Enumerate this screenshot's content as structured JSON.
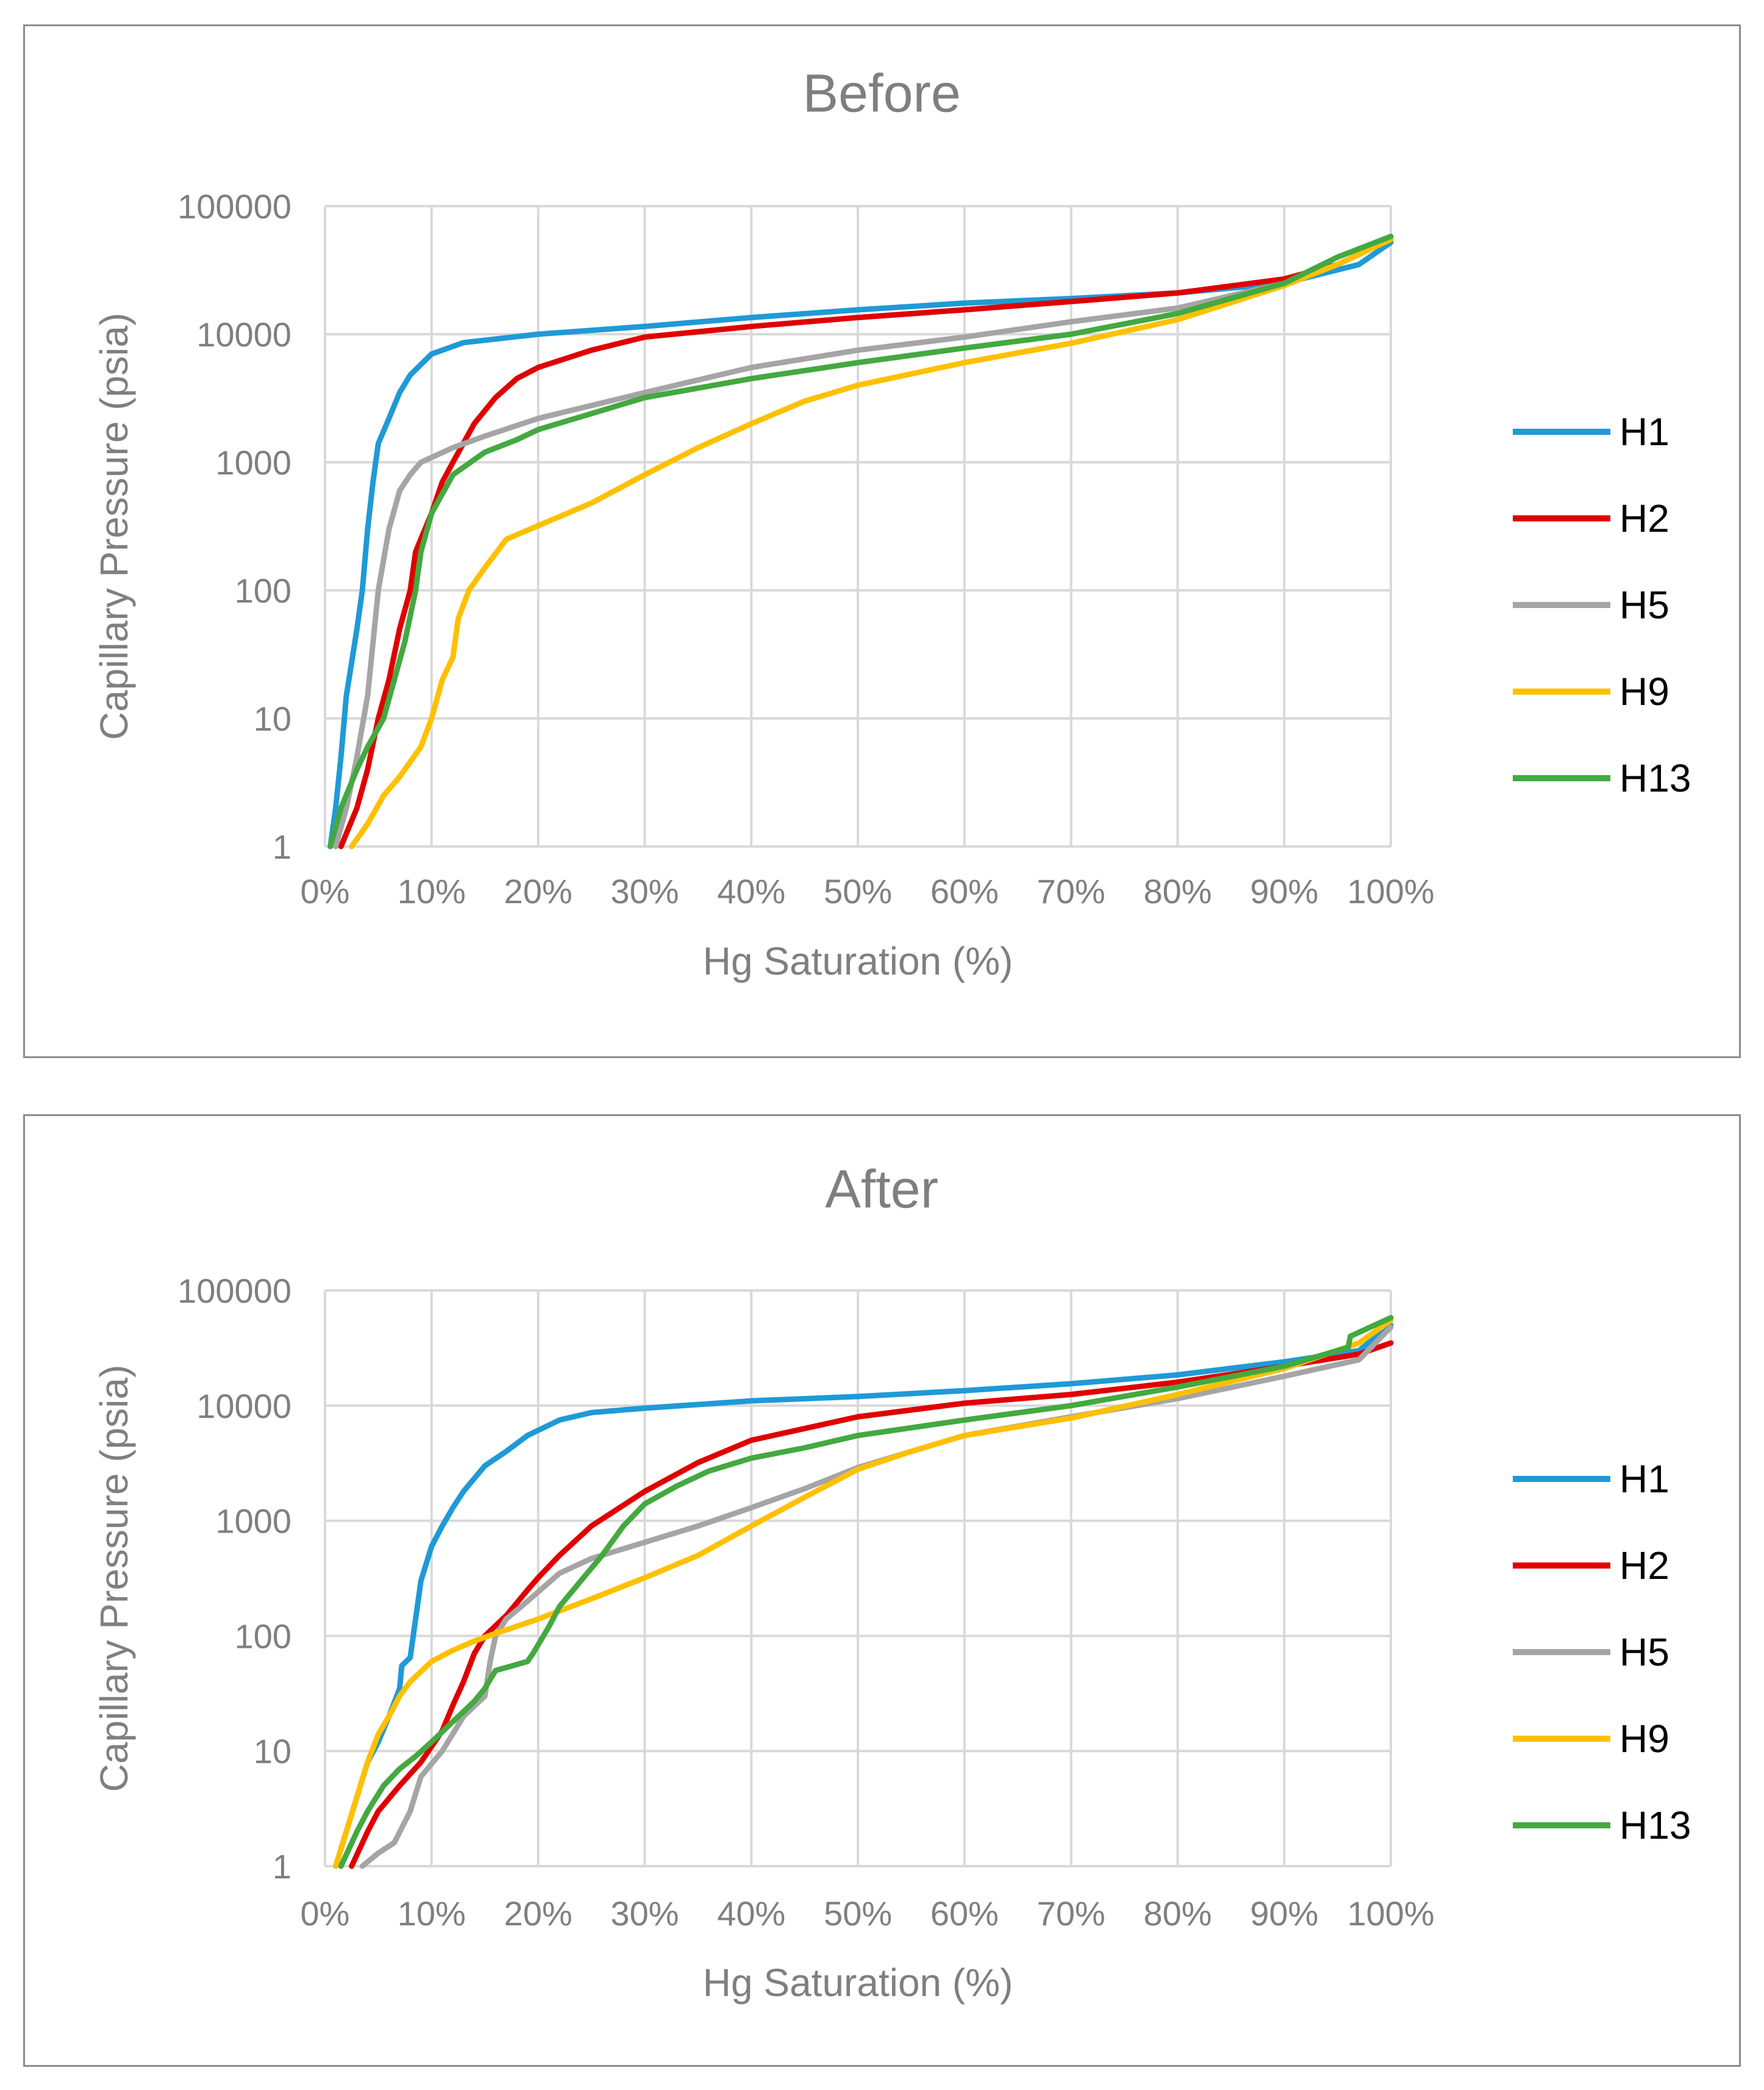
{
  "chart_data": [
    {
      "type": "line",
      "title": "Before",
      "xlabel": "Hg Saturation (%)",
      "ylabel": "Capillary Pressure (psia)",
      "yscale": "log",
      "xlim": [
        0,
        100
      ],
      "ylim": [
        1,
        100000
      ],
      "x_ticks": [
        "0%",
        "10%",
        "20%",
        "30%",
        "40%",
        "50%",
        "60%",
        "70%",
        "80%",
        "90%",
        "100%"
      ],
      "y_ticks": [
        "1",
        "10",
        "100",
        "1000",
        "10000",
        "100000"
      ],
      "grid": true,
      "legend_position": "right",
      "series": [
        {
          "name": "H1",
          "color": "#1f9ad6",
          "points": [
            [
              0.5,
              1
            ],
            [
              1,
              2
            ],
            [
              1.5,
              5
            ],
            [
              2,
              15
            ],
            [
              3,
              50
            ],
            [
              3.5,
              100
            ],
            [
              4,
              300
            ],
            [
              4.5,
              700
            ],
            [
              5,
              1400
            ],
            [
              6,
              2200
            ],
            [
              7,
              3500
            ],
            [
              8,
              4800
            ],
            [
              10,
              7000
            ],
            [
              13,
              8600
            ],
            [
              20,
              10000
            ],
            [
              30,
              11500
            ],
            [
              40,
              13500
            ],
            [
              50,
              15500
            ],
            [
              60,
              17500
            ],
            [
              70,
              19000
            ],
            [
              80,
              21000
            ],
            [
              90,
              25000
            ],
            [
              97,
              35000
            ],
            [
              100,
              52000
            ]
          ]
        },
        {
          "name": "H2",
          "color": "#e00000",
          "points": [
            [
              1.5,
              1
            ],
            [
              3,
              2
            ],
            [
              4,
              4
            ],
            [
              5,
              10
            ],
            [
              6,
              20
            ],
            [
              7,
              50
            ],
            [
              8,
              100
            ],
            [
              8.5,
              200
            ],
            [
              10,
              400
            ],
            [
              11,
              700
            ],
            [
              12,
              1000
            ],
            [
              14,
              2000
            ],
            [
              16,
              3200
            ],
            [
              18,
              4500
            ],
            [
              20,
              5500
            ],
            [
              25,
              7500
            ],
            [
              30,
              9500
            ],
            [
              40,
              11500
            ],
            [
              50,
              13500
            ],
            [
              60,
              15500
            ],
            [
              70,
              18000
            ],
            [
              80,
              21000
            ],
            [
              90,
              27000
            ],
            [
              95,
              35000
            ],
            [
              100,
              55000
            ]
          ]
        },
        {
          "name": "H5",
          "color": "#a5a5a5",
          "points": [
            [
              1,
              1
            ],
            [
              2,
              2
            ],
            [
              3,
              5
            ],
            [
              4,
              15
            ],
            [
              5,
              100
            ],
            [
              6,
              300
            ],
            [
              7,
              600
            ],
            [
              8,
              800
            ],
            [
              9,
              1000
            ],
            [
              12,
              1300
            ],
            [
              15,
              1600
            ],
            [
              20,
              2200
            ],
            [
              30,
              3500
            ],
            [
              40,
              5500
            ],
            [
              50,
              7500
            ],
            [
              60,
              9500
            ],
            [
              70,
              12500
            ],
            [
              80,
              16000
            ],
            [
              90,
              25000
            ],
            [
              95,
              35000
            ],
            [
              100,
              55000
            ]
          ]
        },
        {
          "name": "H9",
          "color": "#ffc000",
          "points": [
            [
              2.5,
              1
            ],
            [
              4,
              1.5
            ],
            [
              5.5,
              2.5
            ],
            [
              7,
              3.5
            ],
            [
              9,
              6
            ],
            [
              10,
              10
            ],
            [
              11,
              20
            ],
            [
              12,
              30
            ],
            [
              12.5,
              60
            ],
            [
              13.5,
              100
            ],
            [
              15,
              150
            ],
            [
              17,
              250
            ],
            [
              20,
              320
            ],
            [
              25,
              480
            ],
            [
              30,
              800
            ],
            [
              35,
              1300
            ],
            [
              40,
              2000
            ],
            [
              45,
              3000
            ],
            [
              50,
              4000
            ],
            [
              60,
              6000
            ],
            [
              70,
              8500
            ],
            [
              80,
              13000
            ],
            [
              90,
              24000
            ],
            [
              95,
              35000
            ],
            [
              100,
              55000
            ]
          ]
        },
        {
          "name": "H13",
          "color": "#43a940",
          "points": [
            [
              0.5,
              1
            ],
            [
              1.5,
              2
            ],
            [
              3,
              4
            ],
            [
              4,
              6
            ],
            [
              5.5,
              10
            ],
            [
              6.5,
              20
            ],
            [
              7.5,
              40
            ],
            [
              8.5,
              100
            ],
            [
              9,
              200
            ],
            [
              10,
              400
            ],
            [
              12,
              800
            ],
            [
              15,
              1200
            ],
            [
              18,
              1500
            ],
            [
              20,
              1800
            ],
            [
              25,
              2400
            ],
            [
              30,
              3200
            ],
            [
              40,
              4500
            ],
            [
              50,
              6000
            ],
            [
              60,
              7800
            ],
            [
              70,
              10000
            ],
            [
              80,
              14500
            ],
            [
              90,
              25000
            ],
            [
              95,
              40000
            ],
            [
              100,
              58000
            ]
          ]
        }
      ],
      "legend": [
        "H1",
        "H2",
        "H5",
        "H9",
        "H13"
      ]
    },
    {
      "type": "line",
      "title": "After",
      "xlabel": "Hg Saturation (%)",
      "ylabel": "Capillary Pressure (psia)",
      "yscale": "log",
      "xlim": [
        0,
        100
      ],
      "ylim": [
        1,
        100000
      ],
      "x_ticks": [
        "0%",
        "10%",
        "20%",
        "30%",
        "40%",
        "50%",
        "60%",
        "70%",
        "80%",
        "90%",
        "100%"
      ],
      "y_ticks": [
        "1",
        "10",
        "100",
        "1000",
        "10000",
        "100000"
      ],
      "grid": true,
      "legend_position": "right",
      "series": [
        {
          "name": "H1",
          "color": "#1f9ad6",
          "points": [
            [
              1,
              1
            ],
            [
              2,
              2
            ],
            [
              3,
              4
            ],
            [
              4,
              8
            ],
            [
              5,
              12
            ],
            [
              6,
              20
            ],
            [
              7,
              35
            ],
            [
              7.2,
              55
            ],
            [
              8,
              65
            ],
            [
              9,
              300
            ],
            [
              10,
              600
            ],
            [
              11,
              900
            ],
            [
              12,
              1300
            ],
            [
              13,
              1800
            ],
            [
              15,
              3000
            ],
            [
              17,
              4000
            ],
            [
              19,
              5500
            ],
            [
              22,
              7500
            ],
            [
              25,
              8700
            ],
            [
              30,
              9500
            ],
            [
              40,
              11000
            ],
            [
              50,
              12000
            ],
            [
              60,
              13500
            ],
            [
              70,
              15500
            ],
            [
              80,
              18500
            ],
            [
              90,
              24000
            ],
            [
              97,
              30000
            ],
            [
              100,
              50000
            ]
          ]
        },
        {
          "name": "H2",
          "color": "#e00000",
          "points": [
            [
              2.5,
              1
            ],
            [
              4,
              2
            ],
            [
              5,
              3
            ],
            [
              7,
              5
            ],
            [
              9,
              8
            ],
            [
              11,
              15
            ],
            [
              12,
              25
            ],
            [
              13,
              40
            ],
            [
              14,
              70
            ],
            [
              15,
              100
            ],
            [
              17,
              150
            ],
            [
              19,
              250
            ],
            [
              20,
              320
            ],
            [
              22,
              500
            ],
            [
              25,
              900
            ],
            [
              30,
              1800
            ],
            [
              35,
              3200
            ],
            [
              40,
              5000
            ],
            [
              50,
              8000
            ],
            [
              60,
              10500
            ],
            [
              70,
              12500
            ],
            [
              80,
              16000
            ],
            [
              90,
              22000
            ],
            [
              97,
              28000
            ],
            [
              100,
              35000
            ]
          ]
        },
        {
          "name": "H5",
          "color": "#a5a5a5",
          "points": [
            [
              3.5,
              1
            ],
            [
              5,
              1.3
            ],
            [
              6.5,
              1.6
            ],
            [
              8,
              3
            ],
            [
              9,
              6
            ],
            [
              11,
              10
            ],
            [
              13,
              20
            ],
            [
              15,
              30
            ],
            [
              15.5,
              60
            ],
            [
              16,
              100
            ],
            [
              17,
              140
            ],
            [
              19,
              200
            ],
            [
              22,
              350
            ],
            [
              25,
              470
            ],
            [
              30,
              650
            ],
            [
              35,
              900
            ],
            [
              40,
              1300
            ],
            [
              45,
              1900
            ],
            [
              50,
              2900
            ],
            [
              55,
              4000
            ],
            [
              60,
              5500
            ],
            [
              70,
              8000
            ],
            [
              80,
              11500
            ],
            [
              90,
              18000
            ],
            [
              97,
              25000
            ],
            [
              100,
              48000
            ]
          ]
        },
        {
          "name": "H9",
          "color": "#ffc000",
          "points": [
            [
              1,
              1
            ],
            [
              2,
              2
            ],
            [
              3,
              4
            ],
            [
              4,
              8
            ],
            [
              5,
              14
            ],
            [
              6,
              20
            ],
            [
              7,
              30
            ],
            [
              8,
              40
            ],
            [
              10,
              60
            ],
            [
              12,
              75
            ],
            [
              14,
              90
            ],
            [
              16,
              105
            ],
            [
              20,
              140
            ],
            [
              25,
              210
            ],
            [
              30,
              320
            ],
            [
              35,
              500
            ],
            [
              40,
              900
            ],
            [
              45,
              1600
            ],
            [
              50,
              2800
            ],
            [
              55,
              4000
            ],
            [
              60,
              5500
            ],
            [
              70,
              7800
            ],
            [
              80,
              12500
            ],
            [
              90,
              21000
            ],
            [
              97,
              35000
            ],
            [
              100,
              55000
            ]
          ]
        },
        {
          "name": "H13",
          "color": "#43a940",
          "points": [
            [
              1.5,
              1
            ],
            [
              3,
              2
            ],
            [
              4,
              3
            ],
            [
              5.5,
              5
            ],
            [
              7,
              7
            ],
            [
              8.5,
              9
            ],
            [
              10,
              12
            ],
            [
              12,
              18
            ],
            [
              14,
              27
            ],
            [
              15,
              35
            ],
            [
              16,
              50
            ],
            [
              19,
              60
            ],
            [
              19.5,
              70
            ],
            [
              21,
              120
            ],
            [
              22,
              180
            ],
            [
              24,
              300
            ],
            [
              26,
              500
            ],
            [
              28,
              900
            ],
            [
              30,
              1400
            ],
            [
              33,
              2000
            ],
            [
              36,
              2700
            ],
            [
              40,
              3500
            ],
            [
              45,
              4300
            ],
            [
              50,
              5500
            ],
            [
              60,
              7500
            ],
            [
              70,
              10000
            ],
            [
              80,
              14500
            ],
            [
              90,
              22000
            ],
            [
              96,
              32000
            ],
            [
              96.2,
              40000
            ],
            [
              100,
              58000
            ]
          ]
        }
      ],
      "legend": [
        "H1",
        "H2",
        "H5",
        "H9",
        "H13"
      ]
    }
  ]
}
